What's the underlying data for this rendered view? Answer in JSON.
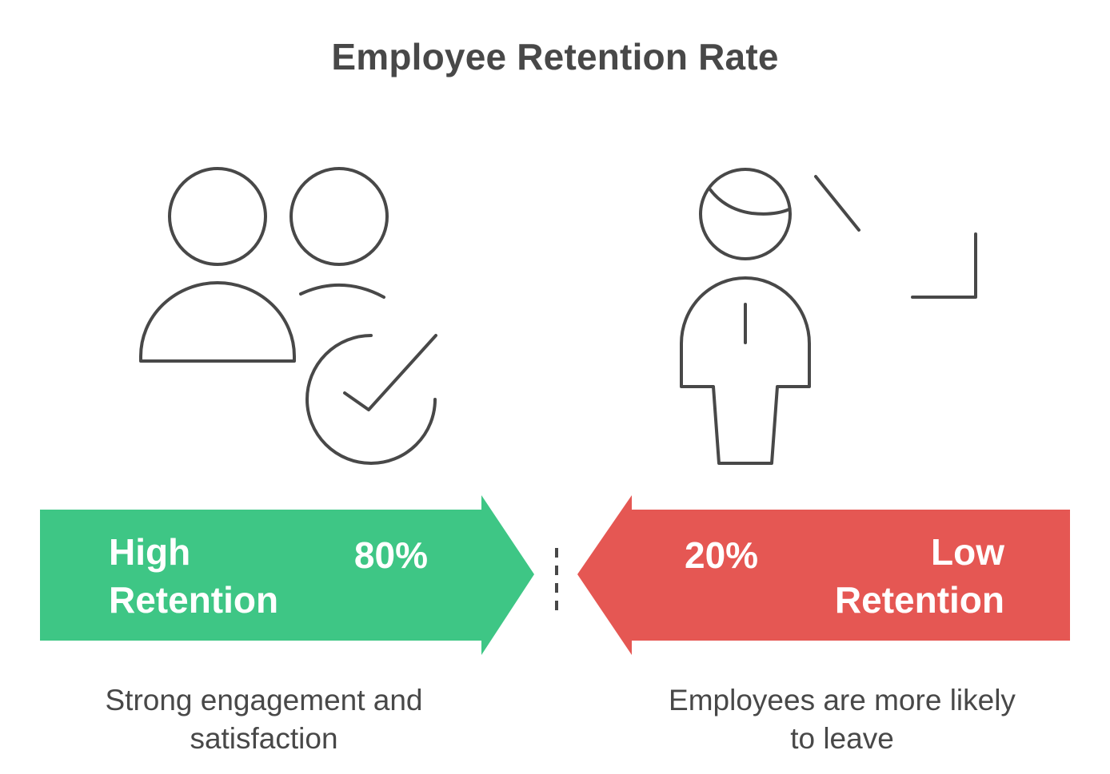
{
  "title": "Employee Retention Rate",
  "left_panel": {
    "label_line1": "High",
    "label_line2": "Retention",
    "percentage": "80%",
    "description_line1": "Strong engagement and",
    "description_line2": "satisfaction",
    "icon": "team-check-icon",
    "color": "#3ec685"
  },
  "right_panel": {
    "label_line1": "Low",
    "label_line2": "Retention",
    "percentage": "20%",
    "description_line1": "Employees are more likely",
    "description_line2": "to leave",
    "icon": "person-decline-icon",
    "color": "#e55753"
  },
  "divider": {
    "icon": "dashed-divider"
  }
}
